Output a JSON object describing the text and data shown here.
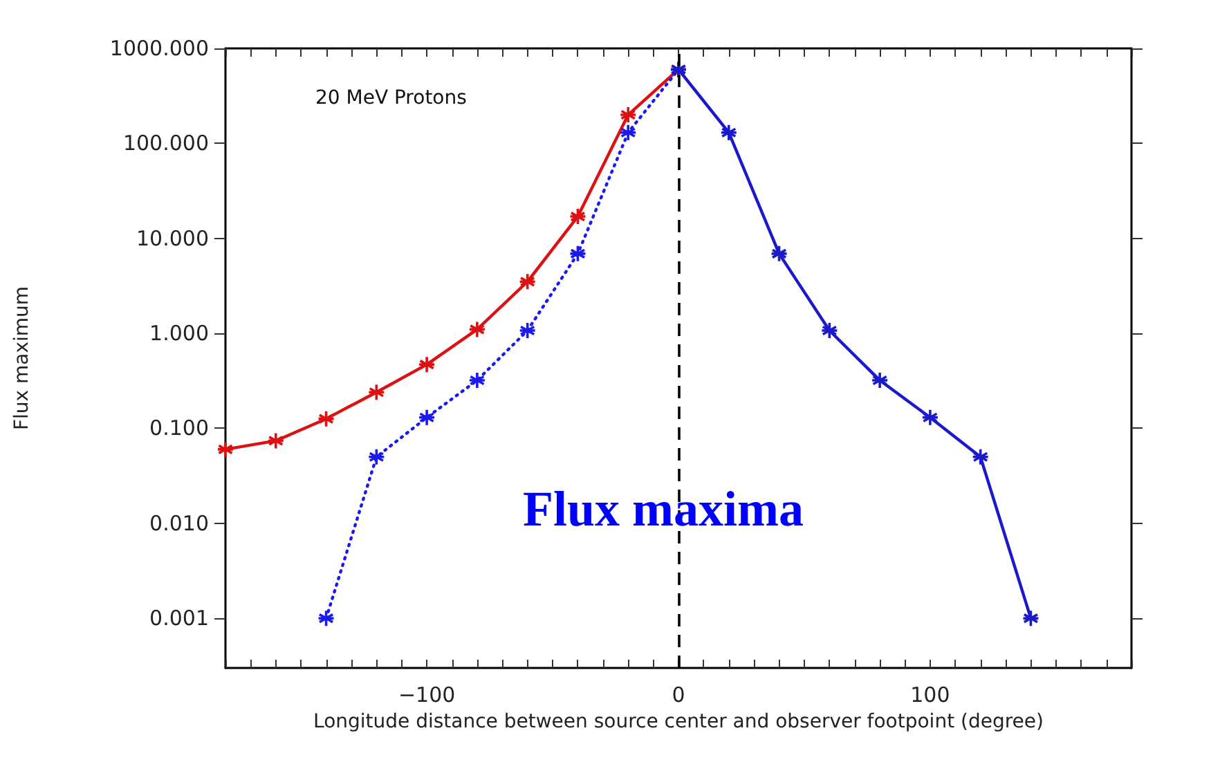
{
  "chart_data": {
    "type": "line",
    "xlabel": "Longitude distance between source center and observer footpoint (degree)",
    "ylabel": "Flux maximum",
    "annotations": [
      "20 MeV Protons",
      "Flux maxima"
    ],
    "log": "y",
    "grid": false,
    "marker": "cross",
    "xlim": [
      -180,
      180
    ],
    "xticks": [
      {
        "value": -180,
        "label": null
      },
      {
        "value": -170,
        "label": null
      },
      {
        "value": -160,
        "label": null
      },
      {
        "value": -150,
        "label": null
      },
      {
        "value": -140,
        "label": null
      },
      {
        "value": -130,
        "label": null
      },
      {
        "value": -120,
        "label": null
      },
      {
        "value": -110,
        "label": null
      },
      {
        "value": -100,
        "label": "−100"
      },
      {
        "value": -90,
        "label": null
      },
      {
        "value": -80,
        "label": null
      },
      {
        "value": -70,
        "label": null
      },
      {
        "value": -60,
        "label": null
      },
      {
        "value": -50,
        "label": null
      },
      {
        "value": -40,
        "label": null
      },
      {
        "value": -30,
        "label": null
      },
      {
        "value": -20,
        "label": null
      },
      {
        "value": -10,
        "label": null
      },
      0,
      {
        "value": 10,
        "label": null
      },
      {
        "value": 20,
        "label": null
      },
      {
        "value": 30,
        "label": null
      },
      {
        "value": 40,
        "label": null
      },
      {
        "value": 50,
        "label": null
      },
      {
        "value": 60,
        "label": null
      },
      {
        "value": 70,
        "label": null
      },
      {
        "value": 80,
        "label": null
      },
      {
        "value": 90,
        "label": null
      },
      100,
      {
        "value": 110,
        "label": null
      },
      {
        "value": 120,
        "label": null
      },
      {
        "value": 130,
        "label": null
      },
      {
        "value": 140,
        "label": null
      },
      {
        "value": 150,
        "label": null
      },
      {
        "value": 160,
        "label": null
      },
      {
        "value": 170,
        "label": null
      },
      {
        "value": 180,
        "label": null
      }
    ],
    "ylim": [
      0.0003,
      1000
    ],
    "yticks": [
      {
        "value": 0.001,
        "label": "0.001"
      },
      {
        "value": 0.01,
        "label": "0.010"
      },
      {
        "value": 0.1,
        "label": "0.100"
      },
      {
        "value": 1,
        "label": "1.000"
      },
      {
        "value": 10,
        "label": "10.000"
      },
      {
        "value": 100,
        "label": "100.000"
      },
      {
        "value": 1000,
        "label": "1000.000"
      }
    ],
    "ref_lines": [
      {
        "axis": "x",
        "value": 0,
        "label": null,
        "color": "#000000",
        "line_style": "dashed"
      }
    ],
    "series": [
      {
        "color": "#dd1111",
        "line_style": "solid",
        "x": [
          -180,
          -160,
          -140,
          -120,
          -100,
          -80,
          -60,
          -40,
          -20,
          0
        ],
        "values": [
          0.06,
          0.074,
          0.126,
          0.24,
          0.47,
          1.1,
          3.5,
          17,
          200,
          600
        ]
      },
      {
        "color": "#1a1aee",
        "line_style": "dotted",
        "x": [
          -140,
          -120,
          -100,
          -80,
          -60,
          -40,
          -20,
          0
        ],
        "values": [
          0.001,
          0.05,
          0.13,
          0.32,
          1.07,
          6.9,
          130,
          600
        ]
      },
      {
        "color": "#1a1acc",
        "line_style": "solid",
        "x": [
          0,
          20,
          40,
          60,
          80,
          100,
          120,
          140
        ],
        "values": [
          600,
          130,
          6.9,
          1.07,
          0.32,
          0.13,
          0.05,
          0.001
        ]
      }
    ]
  }
}
